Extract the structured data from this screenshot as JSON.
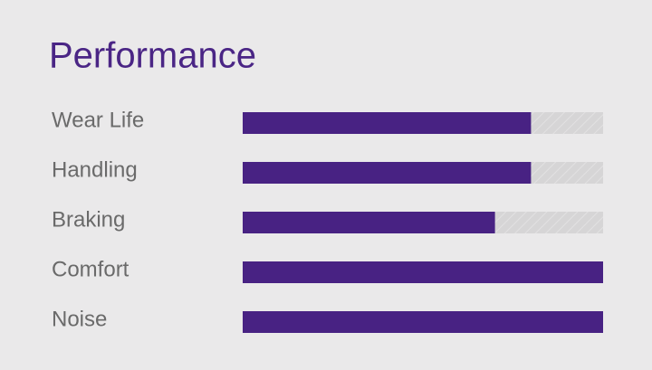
{
  "chart_data": {
    "type": "bar",
    "orientation": "horizontal",
    "title": "Performance",
    "categories": [
      "Wear Life",
      "Handling",
      "Braking",
      "Comfort",
      "Noise"
    ],
    "values": [
      80,
      80,
      70,
      100,
      100
    ],
    "color": "#482283",
    "track_color": "#d6d5d6",
    "xlim": [
      0,
      100
    ]
  }
}
